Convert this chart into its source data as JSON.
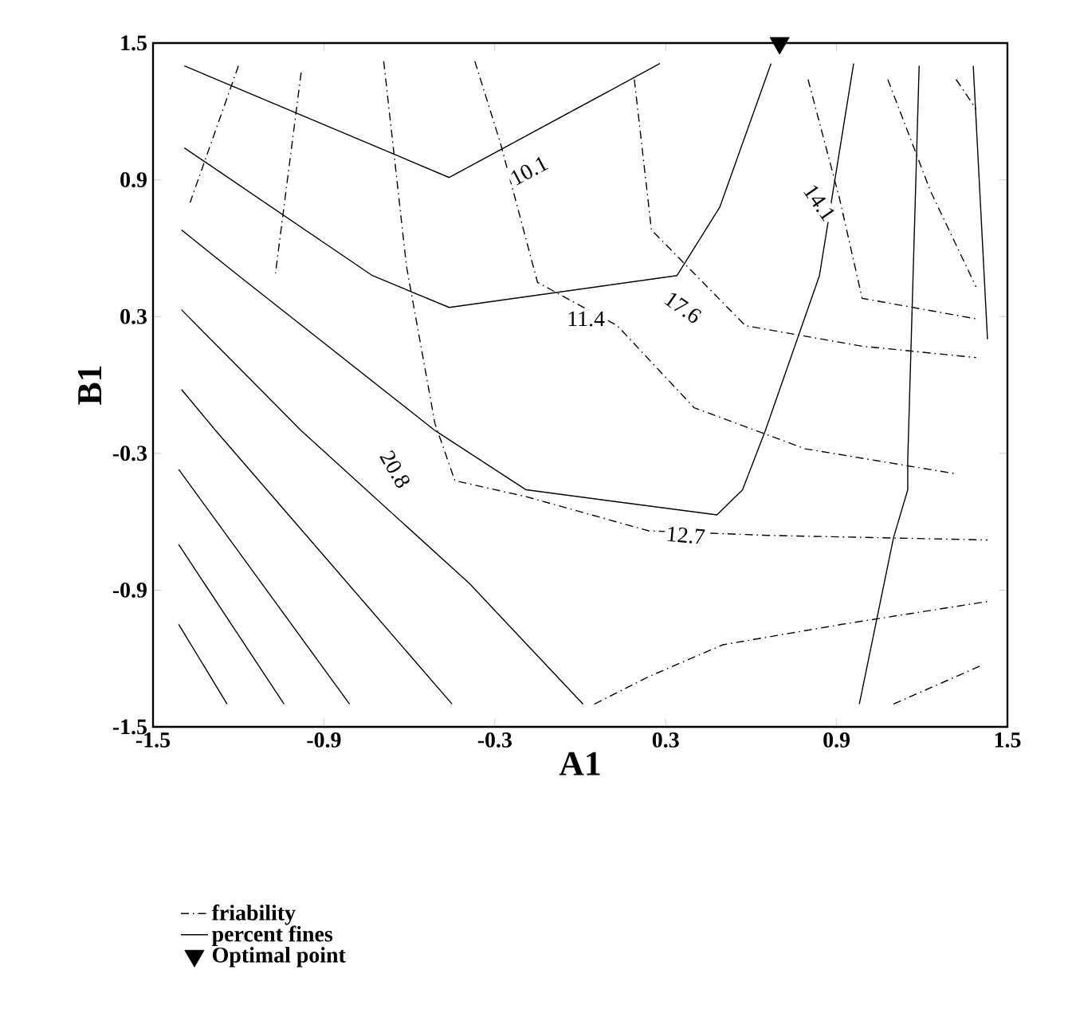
{
  "chart_data": {
    "type": "line",
    "xlabel": "A1",
    "ylabel": "B1",
    "xlim": [
      -1.5,
      1.5
    ],
    "ylim": [
      -1.5,
      1.5
    ],
    "xticks": [
      -1.5,
      -0.9,
      -0.3,
      0.3,
      0.9,
      1.5
    ],
    "yticks": [
      -1.5,
      -0.9,
      -0.3,
      0.3,
      0.9,
      1.5
    ],
    "legend": "bottom",
    "grid": false,
    "series": [
      {
        "name": "friability",
        "color": "#000000",
        "line_style": "dashed",
        "x": [
          -0.69,
          -0.61,
          -0.51,
          -0.44,
          -0.19,
          0.24,
          0.66,
          1.43
        ],
        "values": [
          1.42,
          0.52,
          -0.17,
          -0.42,
          -0.49,
          -0.64,
          -0.66,
          -0.68
        ]
      },
      {
        "color": "#000000",
        "line_style": "dashed",
        "x": [
          -1.2,
          -1.37
        ],
        "values": [
          1.4,
          0.8
        ]
      },
      {
        "color": "#000000",
        "line_style": "dashed",
        "x": [
          -0.98,
          -1.07
        ],
        "values": [
          1.37,
          0.49
        ]
      },
      {
        "color": "#000000",
        "line_style": "dashed",
        "x": [
          -0.37,
          -0.28,
          -0.15,
          0.13,
          0.4,
          0.79,
          1.32
        ],
        "values": [
          1.42,
          1.06,
          0.45,
          0.26,
          -0.1,
          -0.28,
          -0.39
        ]
      },
      {
        "color": "#000000",
        "line_style": "dashed",
        "x": [
          0.19,
          0.25,
          0.58,
          0.99,
          1.39
        ],
        "values": [
          1.34,
          0.68,
          0.26,
          0.17,
          0.12
        ]
      },
      {
        "color": "#000000",
        "line_style": "dashed",
        "x": [
          0.8,
          0.91,
          0.99,
          1.39
        ],
        "values": [
          1.34,
          0.82,
          0.38,
          0.29
        ]
      },
      {
        "color": "#000000",
        "line_style": "dashed",
        "x": [
          1.08,
          1.23,
          1.39
        ],
        "values": [
          1.34,
          0.85,
          0.43
        ]
      },
      {
        "color": "#000000",
        "line_style": "dashed",
        "x": [
          1.32,
          1.39
        ],
        "values": [
          1.34,
          1.21
        ]
      },
      {
        "color": "#000000",
        "line_style": "dashed",
        "x": [
          0.05,
          0.24,
          0.5,
          0.92,
          1.43
        ],
        "values": [
          -1.4,
          -1.28,
          -1.14,
          -1.05,
          -0.95
        ]
      },
      {
        "color": "#000000",
        "line_style": "dashed",
        "x": [
          1.1,
          1.3,
          1.41
        ],
        "values": [
          -1.4,
          -1.29,
          -1.23
        ]
      },
      {
        "name": "percent fines",
        "color": "#000000",
        "line_style": "solid",
        "x": [
          -1.39,
          -0.46,
          0.28
        ],
        "values": [
          1.4,
          0.91,
          1.41
        ]
      },
      {
        "color": "#000000",
        "line_style": "solid",
        "x": [
          -1.39,
          -0.73,
          -0.46,
          0.34,
          0.49,
          0.67
        ],
        "values": [
          1.04,
          0.48,
          0.34,
          0.48,
          0.78,
          1.41
        ]
      },
      {
        "color": "#000000",
        "line_style": "solid",
        "x": [
          -1.4,
          -1.2,
          -0.51,
          -0.19,
          0.48,
          0.57,
          0.65,
          0.84,
          0.96
        ],
        "values": [
          0.68,
          0.48,
          -0.2,
          -0.46,
          -0.57,
          -0.46,
          -0.2,
          0.48,
          1.41
        ]
      },
      {
        "color": "#000000",
        "line_style": "solid",
        "x": [
          -1.4,
          -0.98,
          -0.39,
          0.01
        ],
        "values": [
          0.33,
          -0.2,
          -0.87,
          -1.4
        ]
      },
      {
        "color": "#000000",
        "line_style": "solid",
        "x": [
          -1.4,
          -1.28,
          -0.45
        ],
        "values": [
          -0.02,
          -0.2,
          -1.4
        ]
      },
      {
        "color": "#000000",
        "line_style": "solid",
        "x": [
          -1.41,
          -0.81
        ],
        "values": [
          -0.37,
          -1.4
        ]
      },
      {
        "color": "#000000",
        "line_style": "solid",
        "x": [
          -1.41,
          -1.04
        ],
        "values": [
          -0.7,
          -1.4
        ]
      },
      {
        "color": "#000000",
        "line_style": "solid",
        "x": [
          -1.41,
          -1.24
        ],
        "values": [
          -1.05,
          -1.4
        ]
      },
      {
        "color": "#000000",
        "line_style": "solid",
        "x": [
          1.19,
          1.15,
          1.15,
          1.1,
          0.98
        ],
        "values": [
          1.4,
          -0.33,
          -0.46,
          -0.67,
          -1.4
        ]
      },
      {
        "color": "#000000",
        "line_style": "solid",
        "x": [
          1.38,
          1.43
        ],
        "values": [
          1.4,
          0.2
        ]
      },
      {
        "name": "Optimal point",
        "type": "scatter",
        "marker": "triangle",
        "color": "#000000",
        "x": [
          0.7
        ],
        "values": [
          1.5
        ]
      }
    ],
    "annotations": [
      {
        "text": "10.1",
        "x": -0.18,
        "y": 0.94
      },
      {
        "text": "11.4",
        "x": 0.02,
        "y": 0.29
      },
      {
        "text": "17.6",
        "x": 0.36,
        "y": 0.34
      },
      {
        "text": "14.1",
        "x": 0.84,
        "y": 0.8
      },
      {
        "text": "20.8",
        "x": -0.65,
        "y": -0.37
      },
      {
        "text": "12.7",
        "x": 0.37,
        "y": -0.66
      }
    ]
  }
}
